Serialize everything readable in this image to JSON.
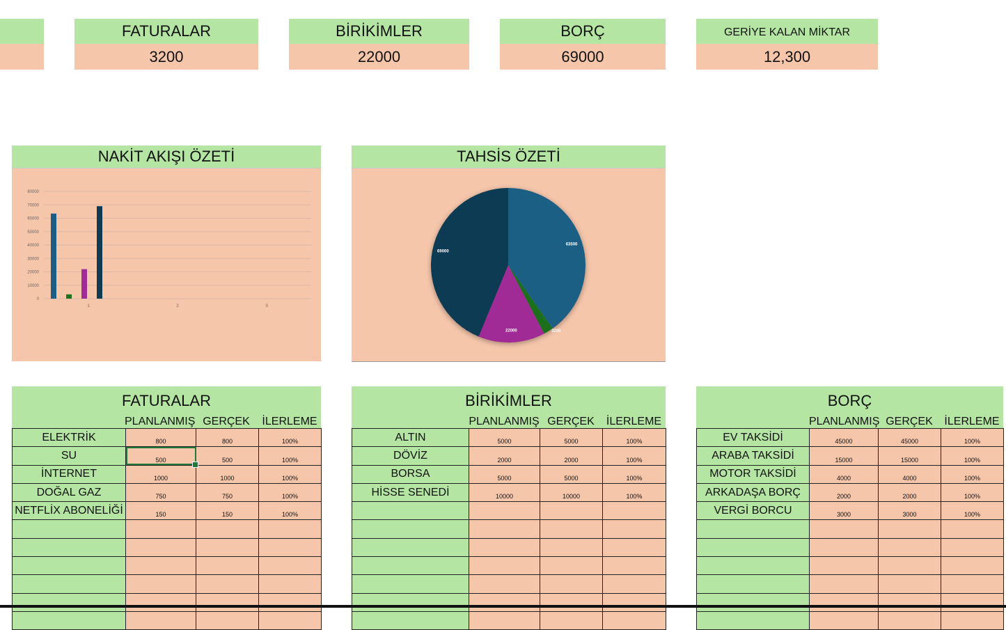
{
  "summary_cards": [
    {
      "title": "",
      "value": ""
    },
    {
      "title": "FATURALAR",
      "value": "3200"
    },
    {
      "title": "BİRİKİMLER",
      "value": "22000"
    },
    {
      "title": "BORÇ",
      "value": "69000"
    },
    {
      "title": "GERİYE KALAN MİKTAR",
      "value": "12,300"
    }
  ],
  "cashflow_panel": {
    "title": "NAKİT AKIŞI ÖZETİ",
    "chart_data": {
      "type": "bar",
      "categories": [
        "1",
        "2",
        "3"
      ],
      "series": [
        {
          "color": "#1a5e85",
          "values": [
            63500,
            null,
            null
          ]
        },
        {
          "color": "#1e6f1e",
          "values": [
            3200,
            null,
            null
          ]
        },
        {
          "color": "#a02a96",
          "values": [
            22000,
            null,
            null
          ]
        },
        {
          "color": "#0f3a52",
          "values": [
            69000,
            null,
            null
          ]
        }
      ],
      "y_ticks": [
        "0",
        "10000",
        "20000",
        "30000",
        "40000",
        "50000",
        "60000",
        "70000",
        "80000"
      ],
      "ylim": [
        0,
        80000
      ],
      "grid": true
    }
  },
  "allocation_panel": {
    "title": "TAHSİS ÖZETİ",
    "chart_data": {
      "type": "pie",
      "slices": [
        {
          "value": 63500,
          "label": "63500",
          "color": "#1a5e85"
        },
        {
          "value": 3200,
          "label": "3200",
          "color": "#1e6f1e"
        },
        {
          "value": 22000,
          "label": "22000",
          "color": "#a02a96"
        },
        {
          "value": 69000,
          "label": "69000",
          "color": "#0f3a52"
        }
      ]
    }
  },
  "tables": [
    {
      "title": "FATURALAR",
      "headers": [
        "PLANLANMIŞ",
        "GERÇEK",
        "İLERLEME"
      ],
      "rows": [
        [
          "ELEKTRİK",
          "800",
          "800",
          "100%"
        ],
        [
          "SU",
          "500",
          "500",
          "100%"
        ],
        [
          "İNTERNET",
          "1000",
          "1000",
          "100%"
        ],
        [
          "DOĞAL GAZ",
          "750",
          "750",
          "100%"
        ],
        [
          "NETFLİX ABONELİĞİ",
          "150",
          "150",
          "100%"
        ],
        [
          "",
          "",
          "",
          ""
        ],
        [
          "",
          "",
          "",
          ""
        ],
        [
          "",
          "",
          "",
          ""
        ],
        [
          "",
          "",
          "",
          ""
        ],
        [
          "",
          "",
          "",
          ""
        ],
        [
          "",
          "",
          "",
          ""
        ]
      ]
    },
    {
      "title": "BİRİKİMLER",
      "headers": [
        "PLANLANMIŞ",
        "GERÇEK",
        "İLERLEME"
      ],
      "rows": [
        [
          "ALTIN",
          "5000",
          "5000",
          "100%"
        ],
        [
          "DÖVİZ",
          "2000",
          "2000",
          "100%"
        ],
        [
          "BORSA",
          "5000",
          "5000",
          "100%"
        ],
        [
          "HİSSE SENEDİ",
          "10000",
          "10000",
          "100%"
        ],
        [
          "",
          "",
          "",
          ""
        ],
        [
          "",
          "",
          "",
          ""
        ],
        [
          "",
          "",
          "",
          ""
        ],
        [
          "",
          "",
          "",
          ""
        ],
        [
          "",
          "",
          "",
          ""
        ],
        [
          "",
          "",
          "",
          ""
        ],
        [
          "",
          "",
          "",
          ""
        ]
      ]
    },
    {
      "title": "BORÇ",
      "headers": [
        "PLANLANMIŞ",
        "GERÇEK",
        "İLERLEME"
      ],
      "rows": [
        [
          "EV TAKSİDİ",
          "45000",
          "45000",
          "100%"
        ],
        [
          "ARABA TAKSİDİ",
          "15000",
          "15000",
          "100%"
        ],
        [
          "MOTOR TAKSİDİ",
          "4000",
          "4000",
          "100%"
        ],
        [
          "ARKADAŞA BORÇ",
          "2000",
          "2000",
          "100%"
        ],
        [
          "VERGİ BORCU",
          "3000",
          "3000",
          "100%"
        ],
        [
          "",
          "",
          "",
          ""
        ],
        [
          "",
          "",
          "",
          ""
        ],
        [
          "",
          "",
          "",
          ""
        ],
        [
          "",
          "",
          "",
          ""
        ],
        [
          "",
          "",
          "",
          ""
        ],
        [
          "",
          "",
          "",
          ""
        ]
      ]
    }
  ]
}
